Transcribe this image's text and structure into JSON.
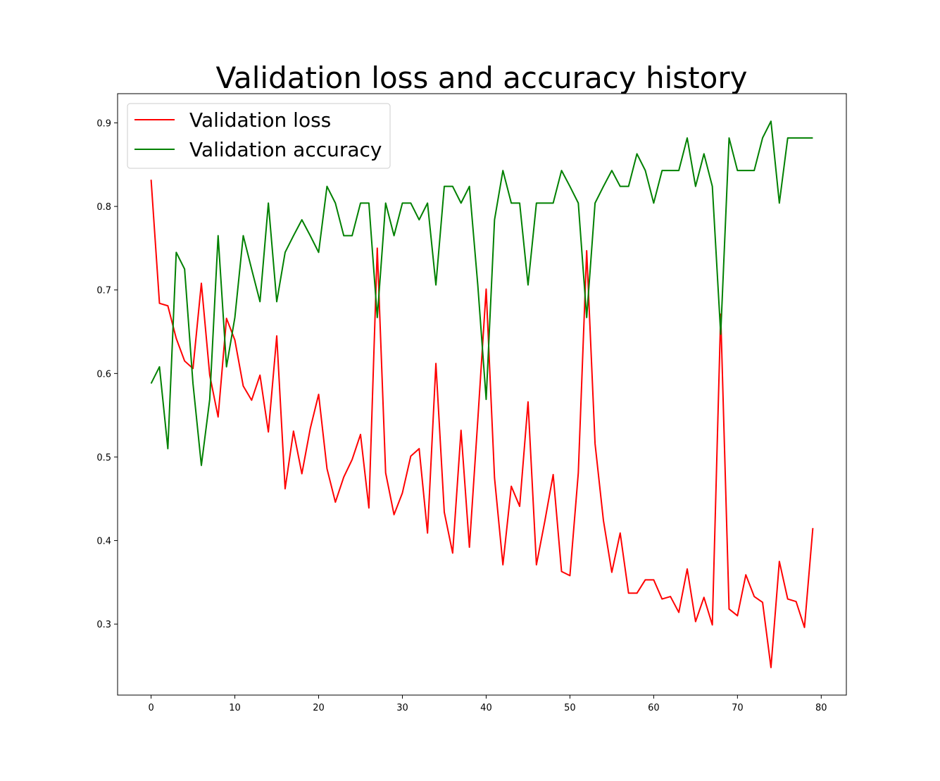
{
  "chart_data": {
    "type": "line",
    "title": "Validation loss and accuracy history",
    "xlabel": "",
    "ylabel": "",
    "xlim": [
      -4,
      83
    ],
    "ylim": [
      0.215,
      0.935
    ],
    "xticks": [
      0,
      10,
      20,
      30,
      40,
      50,
      60,
      70,
      80
    ],
    "yticks": [
      0.3,
      0.4,
      0.5,
      0.6,
      0.7,
      0.8,
      0.9
    ],
    "xtick_labels": [
      "0",
      "10",
      "20",
      "30",
      "40",
      "50",
      "60",
      "70",
      "80"
    ],
    "ytick_labels": [
      "0.3",
      "0.4",
      "0.5",
      "0.6",
      "0.7",
      "0.8",
      "0.9"
    ],
    "grid": false,
    "legend_position": "top-left",
    "x": [
      0,
      1,
      2,
      3,
      4,
      5,
      6,
      7,
      8,
      9,
      10,
      11,
      12,
      13,
      14,
      15,
      16,
      17,
      18,
      19,
      20,
      21,
      22,
      23,
      24,
      25,
      26,
      27,
      28,
      29,
      30,
      31,
      32,
      33,
      34,
      35,
      36,
      37,
      38,
      39,
      40,
      41,
      42,
      43,
      44,
      45,
      46,
      47,
      48,
      49,
      50,
      51,
      52,
      53,
      54,
      55,
      56,
      57,
      58,
      59,
      60,
      61,
      62,
      63,
      64,
      65,
      66,
      67,
      68,
      69,
      70,
      71,
      72,
      73,
      74,
      75,
      76,
      77,
      78,
      79
    ],
    "series": [
      {
        "name": "Validation loss",
        "color": "#ff0000",
        "values": [
          0.832,
          0.684,
          0.681,
          0.642,
          0.615,
          0.606,
          0.708,
          0.598,
          0.548,
          0.666,
          0.64,
          0.585,
          0.568,
          0.598,
          0.53,
          0.645,
          0.462,
          0.531,
          0.48,
          0.534,
          0.575,
          0.486,
          0.446,
          0.476,
          0.497,
          0.527,
          0.439,
          0.75,
          0.481,
          0.431,
          0.457,
          0.501,
          0.51,
          0.409,
          0.612,
          0.434,
          0.385,
          0.532,
          0.392,
          0.544,
          0.701,
          0.475,
          0.371,
          0.465,
          0.441,
          0.566,
          0.371,
          0.423,
          0.479,
          0.363,
          0.358,
          0.481,
          0.747,
          0.516,
          0.424,
          0.362,
          0.409,
          0.337,
          0.337,
          0.353,
          0.353,
          0.33,
          0.333,
          0.314,
          0.366,
          0.303,
          0.332,
          0.299,
          0.671,
          0.318,
          0.31,
          0.359,
          0.333,
          0.326,
          0.248,
          0.375,
          0.33,
          0.327,
          0.296,
          0.415
        ]
      },
      {
        "name": "Validation accuracy",
        "color": "#008000",
        "values": [
          0.588,
          0.608,
          0.51,
          0.745,
          0.725,
          0.588,
          0.49,
          0.569,
          0.765,
          0.608,
          0.667,
          0.765,
          0.725,
          0.686,
          0.804,
          0.686,
          0.745,
          0.765,
          0.784,
          0.765,
          0.745,
          0.824,
          0.804,
          0.765,
          0.765,
          0.804,
          0.804,
          0.667,
          0.804,
          0.765,
          0.804,
          0.804,
          0.784,
          0.804,
          0.706,
          0.824,
          0.824,
          0.804,
          0.824,
          0.706,
          0.569,
          0.784,
          0.843,
          0.804,
          0.804,
          0.706,
          0.804,
          0.804,
          0.804,
          0.843,
          0.824,
          0.804,
          0.667,
          0.804,
          0.824,
          0.843,
          0.824,
          0.824,
          0.863,
          0.843,
          0.804,
          0.843,
          0.843,
          0.843,
          0.882,
          0.824,
          0.863,
          0.824,
          0.647,
          0.882,
          0.843,
          0.843,
          0.843,
          0.882,
          0.902,
          0.804,
          0.882,
          0.882,
          0.882,
          0.882
        ]
      }
    ]
  }
}
